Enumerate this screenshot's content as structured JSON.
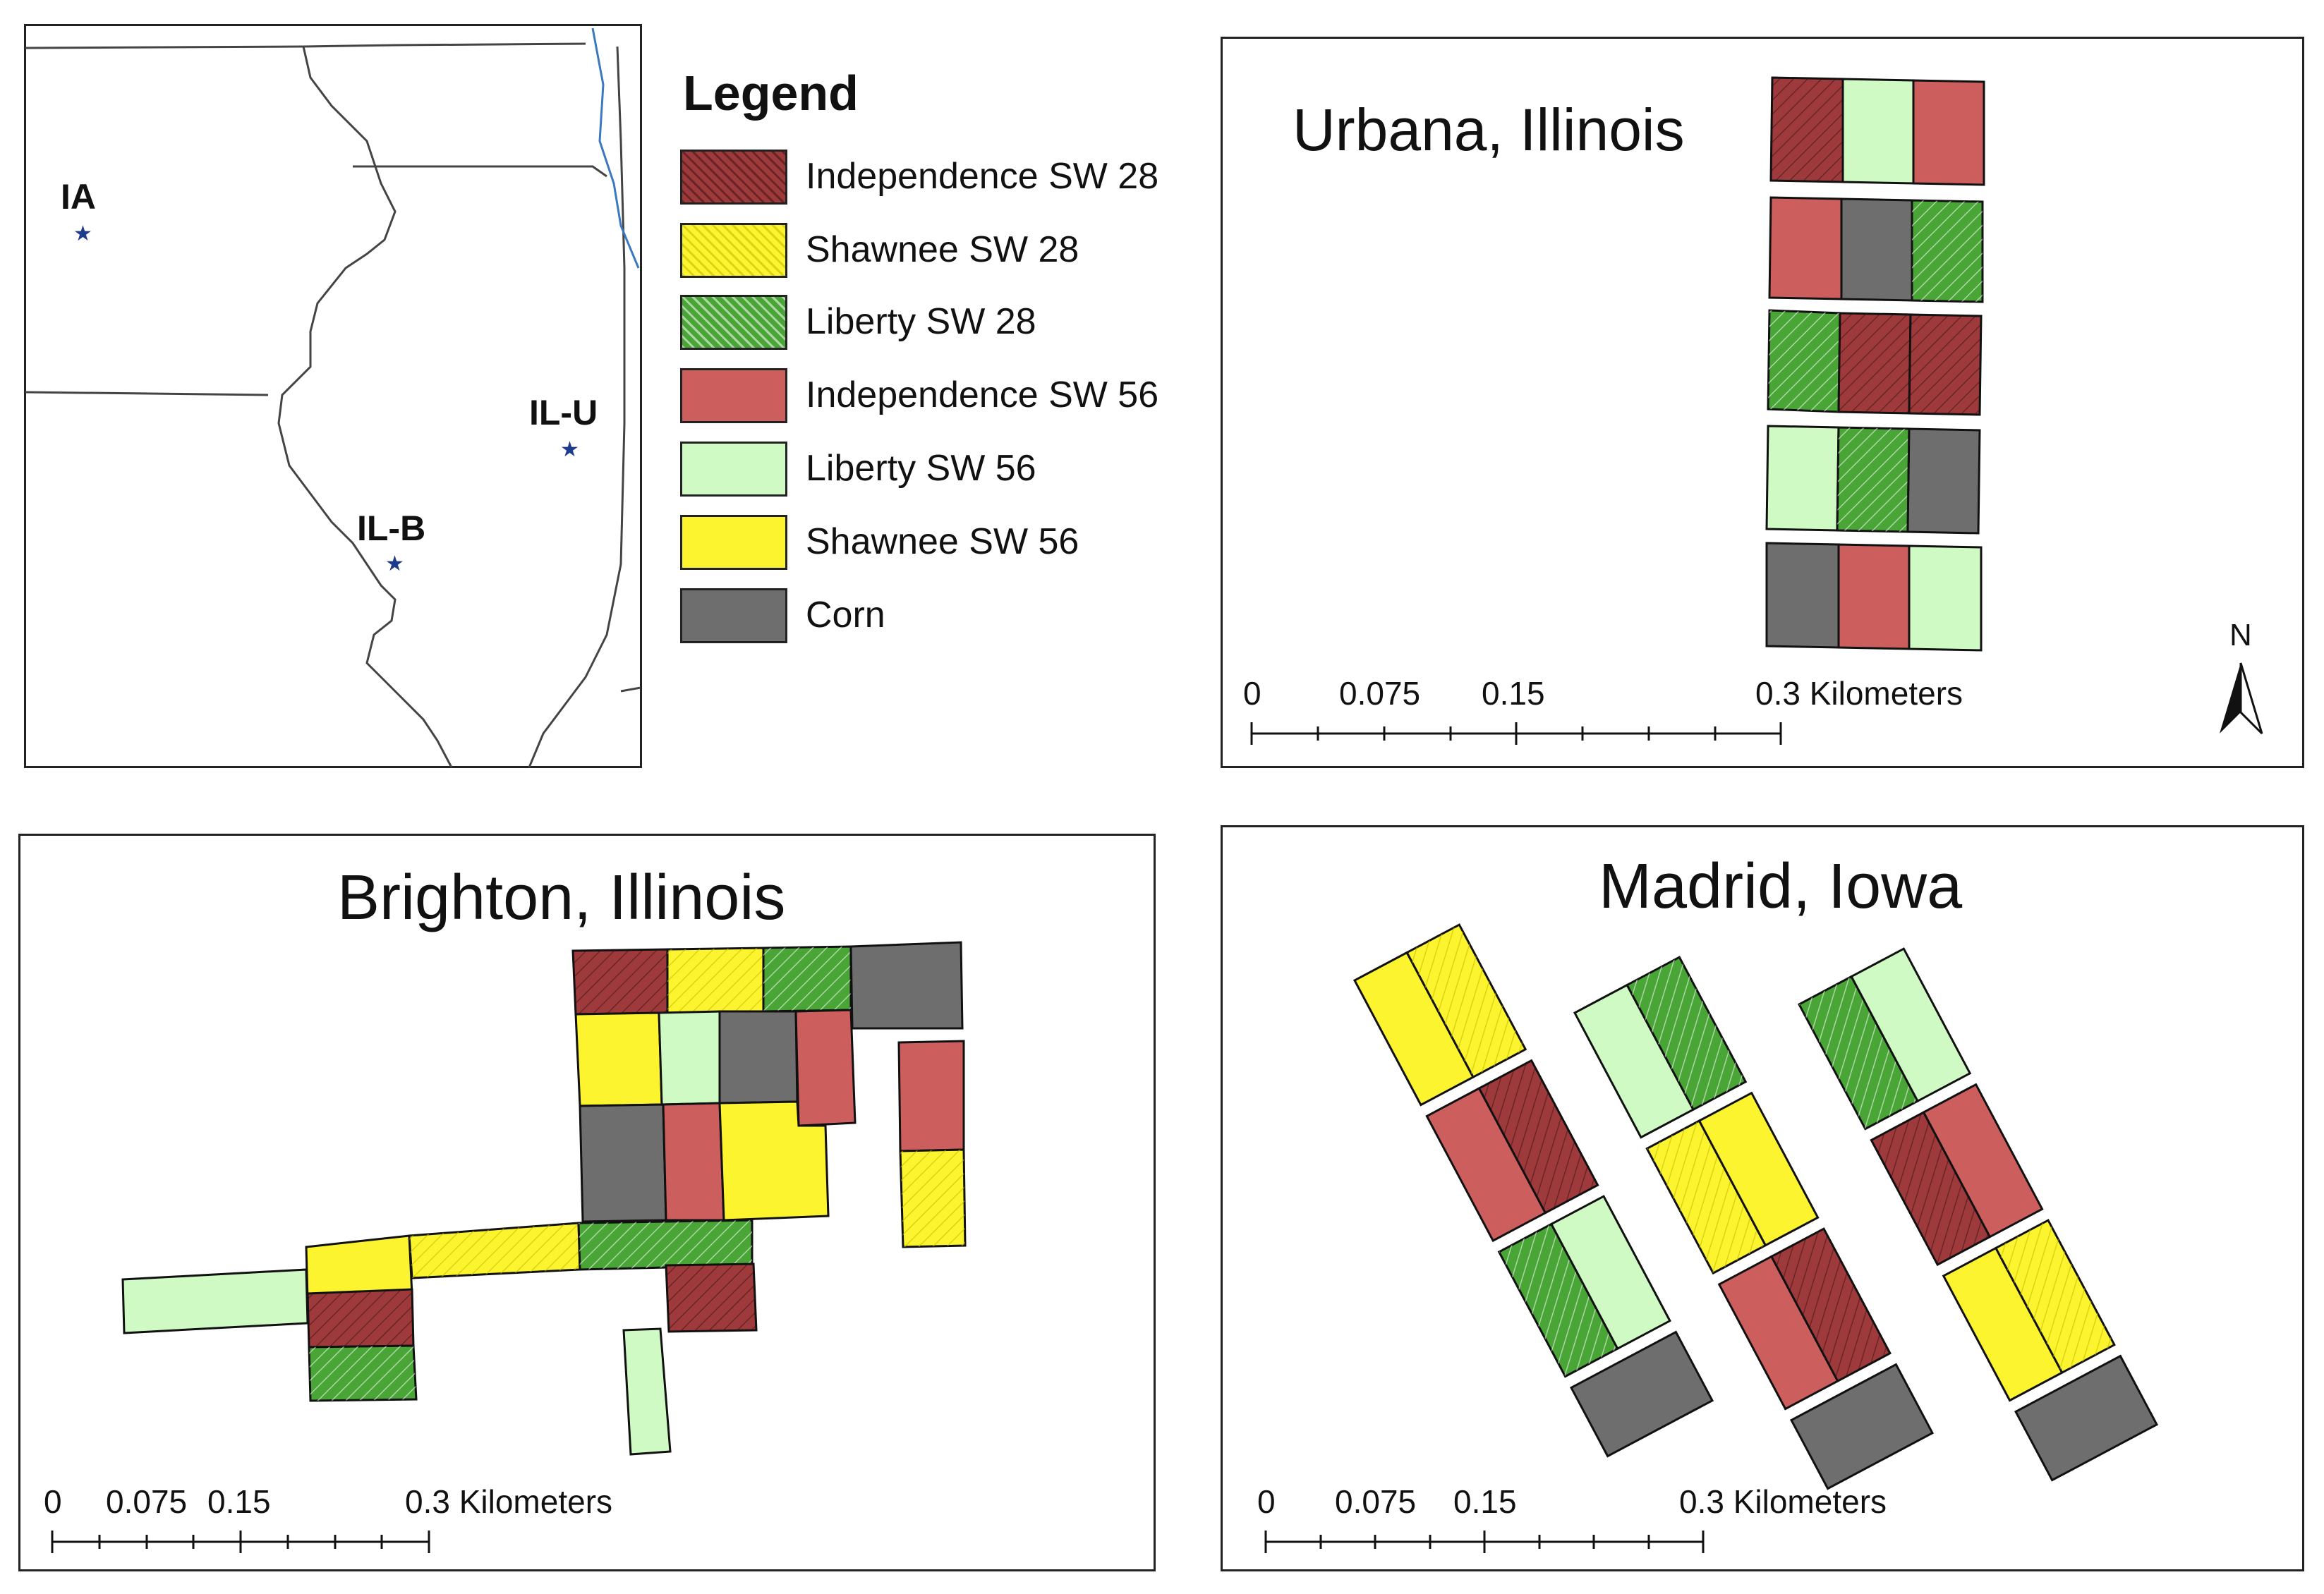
{
  "colors": {
    "independence": "#9f3a3c",
    "independence56": "#cd5e5e",
    "shawnee": "#fbf42e",
    "liberty28": "#48a536",
    "liberty56": "#cffac4",
    "corn": "#6e6e6e"
  },
  "overview": {
    "sites": [
      {
        "label": "IA",
        "icon": "star-icon"
      },
      {
        "label": "IL-U",
        "icon": "star-icon"
      },
      {
        "label": "IL-B",
        "icon": "star-icon"
      }
    ]
  },
  "legend": {
    "title": "Legend",
    "items": [
      {
        "label": "Independence SW 28",
        "key": "i28"
      },
      {
        "label": "Shawnee SW 28",
        "key": "s28"
      },
      {
        "label": "Liberty SW 28",
        "key": "l28"
      },
      {
        "label": "Independence SW 56",
        "key": "i56"
      },
      {
        "label": "Liberty SW 56",
        "key": "l56"
      },
      {
        "label": "Shawnee SW 56",
        "key": "s56"
      },
      {
        "label": "Corn",
        "key": "corn"
      }
    ]
  },
  "urbana": {
    "title": "Urbana, Illinois",
    "scale": [
      "0",
      "0.075",
      "0.15",
      "0.3  Kilometers"
    ],
    "north": "N"
  },
  "brighton": {
    "title": "Brighton, Illinois",
    "scale": [
      "0",
      "0.075",
      "0.15",
      "0.3 Kilometers"
    ]
  },
  "madrid": {
    "title": "Madrid, Iowa",
    "scale": [
      "0",
      "0.075",
      "0.15",
      "0.3 Kilometers"
    ]
  }
}
